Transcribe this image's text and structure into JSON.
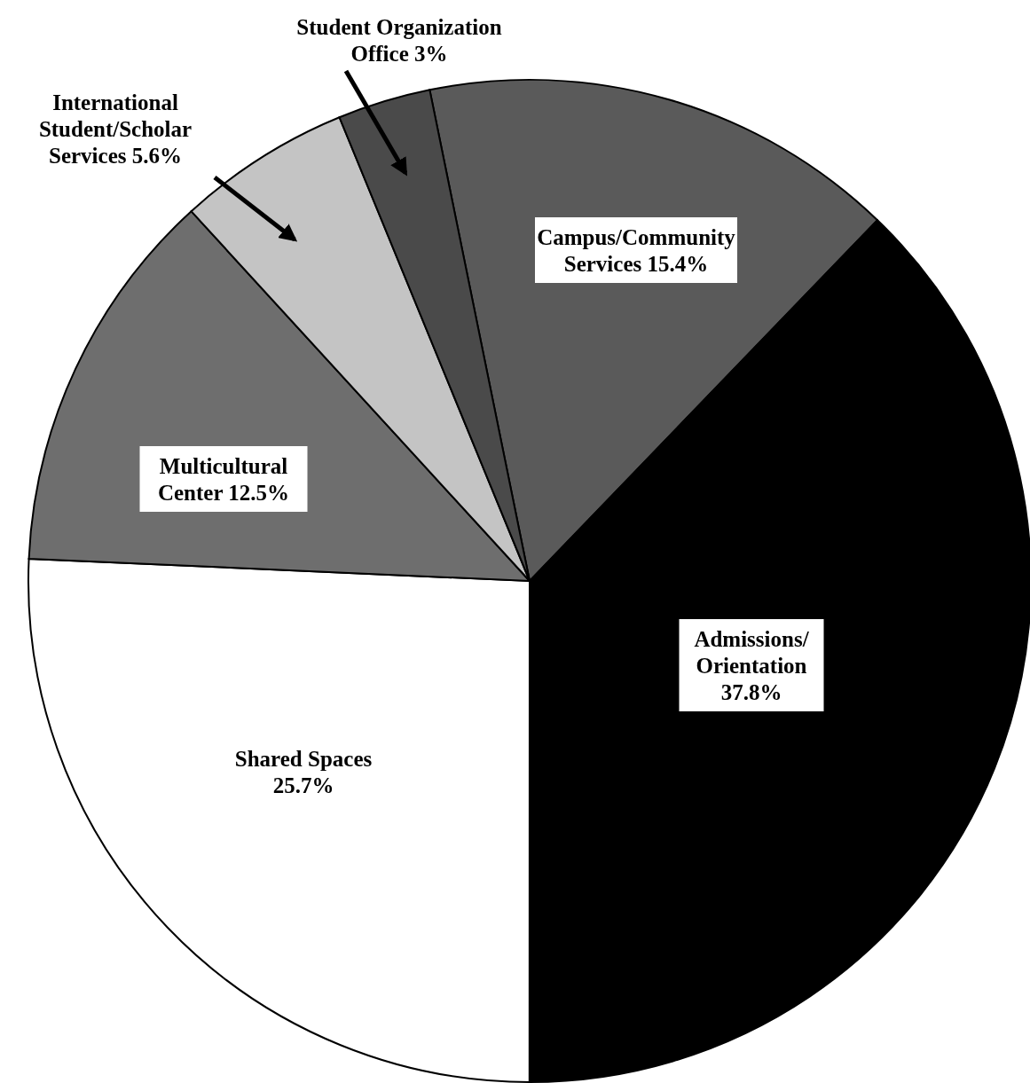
{
  "chart_data": {
    "type": "pie",
    "categories": [
      "Campus/Community Services",
      "Admissions/ Orientation",
      "Shared Spaces",
      "Multicultural Center",
      "International Student/Scholar Services",
      "Student Organization Office"
    ],
    "values": [
      15.4,
      37.8,
      25.7,
      12.5,
      5.6,
      3
    ],
    "colors": [
      "#5a5a5a",
      "#000000",
      "#ffffff",
      "#6e6e6e",
      "#c4c4c4",
      "#4a4a4a"
    ],
    "value_labels": [
      "15.4%",
      "37.8%",
      "25.7%",
      "12.5%",
      "5.6%",
      "3%"
    ]
  }
}
